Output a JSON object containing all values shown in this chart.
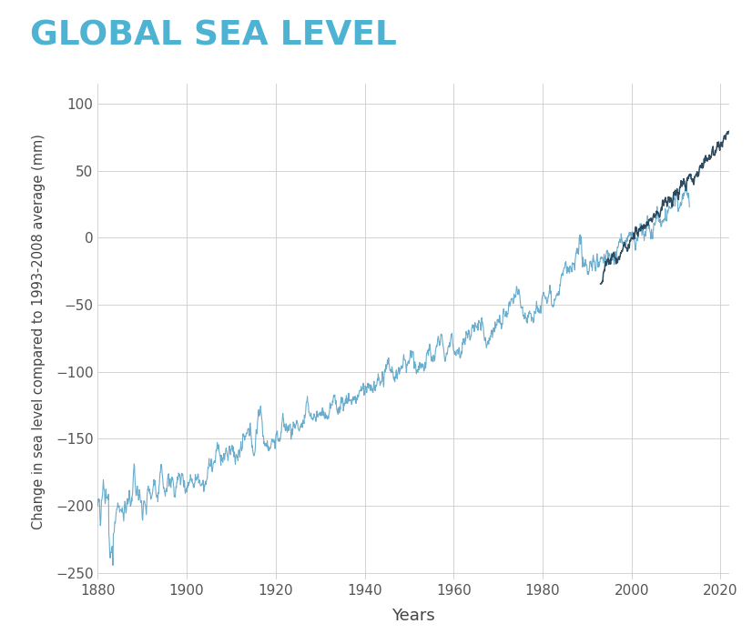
{
  "title": "GLOBAL SEA LEVEL",
  "title_color": "#4EB3D3",
  "xlabel": "Years",
  "ylabel": "Change in sea level compared to 1993-2008 average (mm)",
  "xlim": [
    1880,
    2022
  ],
  "ylim": [
    -255,
    115
  ],
  "yticks": [
    -250,
    -200,
    -150,
    -100,
    -50,
    0,
    50,
    100
  ],
  "xticks": [
    1880,
    1900,
    1920,
    1940,
    1960,
    1980,
    2000,
    2020
  ],
  "tide_color": "#5BA4C8",
  "satellite_color": "#1C3B52",
  "grid_color": "#CCCCCC",
  "background_color": "#FFFFFF",
  "tide_linewidth": 0.8,
  "satellite_linewidth": 1.1
}
